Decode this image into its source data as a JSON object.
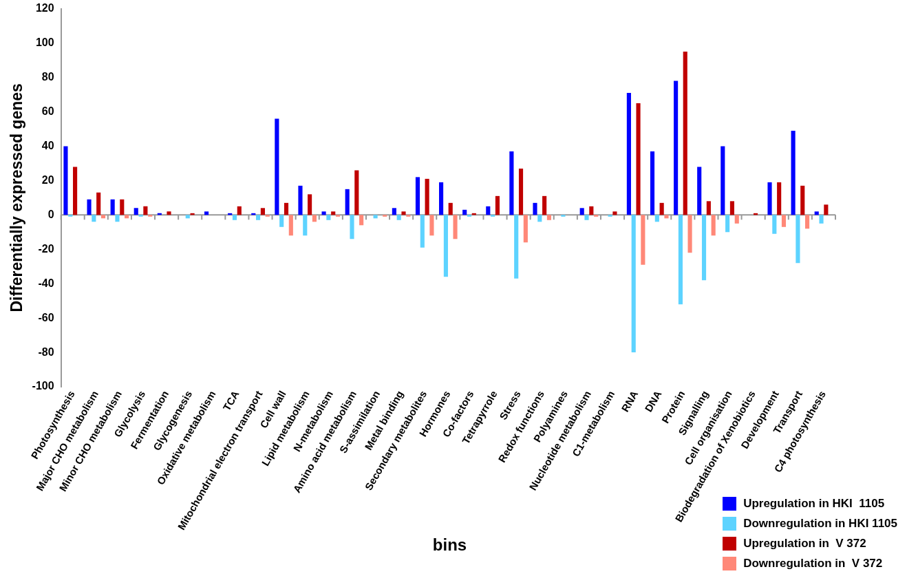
{
  "chart_data": {
    "type": "bar",
    "xlabel": "bins",
    "ylabel": "Differentially expressed genes",
    "categories": [
      "Photosynthesis",
      "Major CHO metabolism",
      "Minor CHO metabolism",
      "Glycolysis",
      "Fermentation",
      "Glycogenesis",
      "Oxidative metabolism",
      "TCA",
      "Mitochondrial electron transport",
      "Cell wall",
      "Lipid metabolism",
      "N-metabolism",
      "Amino acid metabolism",
      "S-assimilation",
      "Metal binding",
      "Secondary metabolites",
      "Hormones",
      "Co-factors",
      "Tetrapyrrole",
      "Stress",
      "Redox functions",
      "Polyamines",
      "Nucleotide metabolism",
      "C1-metabolism",
      "RNA",
      "DNA",
      "Protein",
      "Signalling",
      "Cell organisation",
      "Biodegradation of Xenobiotics",
      "Development",
      "Transport",
      "C4 photosynthesis"
    ],
    "series": [
      {
        "name": "Upregulation in HKI  1105",
        "color": "#0000ff",
        "values": [
          40,
          9,
          9,
          4,
          1,
          0,
          2,
          1,
          1,
          56,
          17,
          2,
          15,
          0,
          4,
          22,
          19,
          3,
          5,
          37,
          7,
          0,
          4,
          0,
          71,
          37,
          78,
          28,
          40,
          0,
          19,
          49,
          2
        ]
      },
      {
        "name": "Downregulation in HKI 1105",
        "color": "#5dd3ff",
        "values": [
          -1,
          -4,
          -4,
          -1,
          0,
          -2,
          0,
          -3,
          -3,
          -7,
          -12,
          -3,
          -14,
          -2,
          -3,
          -19,
          -36,
          -1,
          -1,
          -37,
          -4,
          -1,
          -3,
          -1,
          -80,
          -4,
          -52,
          -38,
          -10,
          0,
          -11,
          -28,
          -5
        ]
      },
      {
        "name": "Upregulation in  V 372",
        "color": "#c00000",
        "values": [
          28,
          13,
          9,
          5,
          2,
          1,
          0,
          5,
          4,
          7,
          12,
          2,
          26,
          0,
          2,
          21,
          7,
          1,
          11,
          27,
          11,
          0,
          5,
          2,
          65,
          7,
          95,
          8,
          8,
          1,
          19,
          17,
          6
        ]
      },
      {
        "name": "Downregulation in  V 372",
        "color": "#ff8878",
        "values": [
          0,
          -2,
          -2,
          -1,
          0,
          0,
          0,
          0,
          -1,
          -12,
          -4,
          -1,
          -6,
          -1,
          -1,
          -12,
          -14,
          0,
          0,
          -16,
          -3,
          0,
          -1,
          0,
          -29,
          -2,
          -22,
          -12,
          -5,
          0,
          -7,
          -8,
          0
        ]
      }
    ],
    "ylim": [
      -100,
      120
    ],
    "yticks": [
      -100,
      -80,
      -60,
      -40,
      -20,
      0,
      20,
      40,
      60,
      80,
      100,
      120
    ],
    "legend": "bottom right"
  }
}
